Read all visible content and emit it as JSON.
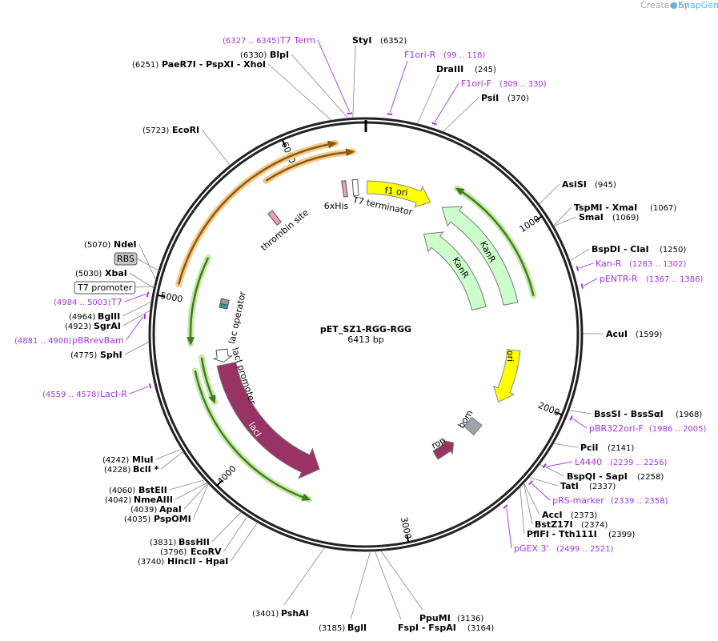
{
  "header": {
    "created_by": "Created by",
    "brand": "SnapGene"
  },
  "map": {
    "name": "pET_SZ1-RGG-RGG",
    "length": "6413 bp",
    "ticks": [
      1000,
      2000,
      3000,
      4000,
      5000,
      6000
    ]
  },
  "features": [
    {
      "label": "f1 ori"
    },
    {
      "label": "KanR"
    },
    {
      "label": "KanR"
    },
    {
      "label": "ori"
    },
    {
      "label": "bom"
    },
    {
      "label": "rop"
    },
    {
      "label": "lacI"
    },
    {
      "label": "lacI promoter"
    },
    {
      "label": "lac operator"
    },
    {
      "label": "thrombin site"
    },
    {
      "label": "6xHis"
    },
    {
      "label": "T7 terminator"
    },
    {
      "label": "RBS"
    },
    {
      "label": "T7 promoter"
    }
  ],
  "enzymes": [
    {
      "name": "StyI",
      "site": "(6352)"
    },
    {
      "name": "BlpI",
      "site": "(6330)"
    },
    {
      "name": "PaeR7I  - PspXI  - XhoI",
      "site": "(6251)"
    },
    {
      "name": "DraIII",
      "site": "(245)"
    },
    {
      "name": "PsiI",
      "site": "(370)"
    },
    {
      "name": "EcoRI",
      "site": "(5723)"
    },
    {
      "name": "AsiSI",
      "site": "(945)"
    },
    {
      "name": "TspMI  - XmaI",
      "site": "(1067)"
    },
    {
      "name": "SmaI",
      "site": "(1069)"
    },
    {
      "name": "BspDI  - ClaI",
      "site": "(1250)"
    },
    {
      "name": "AcuI",
      "site": "(1599)"
    },
    {
      "name": "BssSI  - BssSαI",
      "site": "(1968)"
    },
    {
      "name": "PciI",
      "site": "(2141)"
    },
    {
      "name": "BspQI  - SapI",
      "site": "(2258)"
    },
    {
      "name": "TatI",
      "site": "(2337)"
    },
    {
      "name": "AccI",
      "site": "(2373)"
    },
    {
      "name": "BstZ17I",
      "site": "(2374)"
    },
    {
      "name": "PflFI  - Tth111I",
      "site": "(2399)"
    },
    {
      "name": "PpuMI",
      "site": "(3136)"
    },
    {
      "name": "FspI  - FspAI",
      "site": "(3164)"
    },
    {
      "name": "BglI",
      "site": "(3185)"
    },
    {
      "name": "PshAI",
      "site": "(3401)"
    },
    {
      "name": "HincII  - HpaI",
      "site": "(3740)"
    },
    {
      "name": "EcoRV",
      "site": "(3796)"
    },
    {
      "name": "BssHII",
      "site": "(3831)"
    },
    {
      "name": "PspOMI",
      "site": "(4035)"
    },
    {
      "name": "ApaI",
      "site": "(4039)"
    },
    {
      "name": "NmeAIII",
      "site": "(4042)"
    },
    {
      "name": "BstEII",
      "site": "(4060)"
    },
    {
      "name": "BclI *",
      "site": "(4228)"
    },
    {
      "name": "MluI",
      "site": "(4242)"
    },
    {
      "name": "SphI",
      "site": "(4775)"
    },
    {
      "name": "SgrAI",
      "site": "(4923)"
    },
    {
      "name": "BglII",
      "site": "(4964)"
    },
    {
      "name": "XbaI",
      "site": "(5030)"
    },
    {
      "name": "NdeI",
      "site": "(5070)"
    }
  ],
  "primers": [
    {
      "name": "T7 Term",
      "range": "(6327 .. 6345)"
    },
    {
      "name": "F1ori-R",
      "range": "(99 .. 118)"
    },
    {
      "name": "F1ori-F",
      "range": "(309 .. 330)"
    },
    {
      "name": "Kan-R",
      "range": "(1283 .. 1302)"
    },
    {
      "name": "pENTR-R",
      "range": "(1367 .. 1386)"
    },
    {
      "name": "pBR322ori-F",
      "range": "(1986 .. 2005)"
    },
    {
      "name": "L4440",
      "range": "(2239 .. 2256)"
    },
    {
      "name": "pRS-marker",
      "range": "(2339 .. 2358)"
    },
    {
      "name": "pGEX 3'",
      "range": "(2499 .. 2521)"
    },
    {
      "name": "LacI-R",
      "range": "(4559 .. 4578)"
    },
    {
      "name": "pBRrevBam",
      "range": "(4881 .. 4900)"
    },
    {
      "name": "T7",
      "range": "(4984 .. 5003)"
    }
  ]
}
